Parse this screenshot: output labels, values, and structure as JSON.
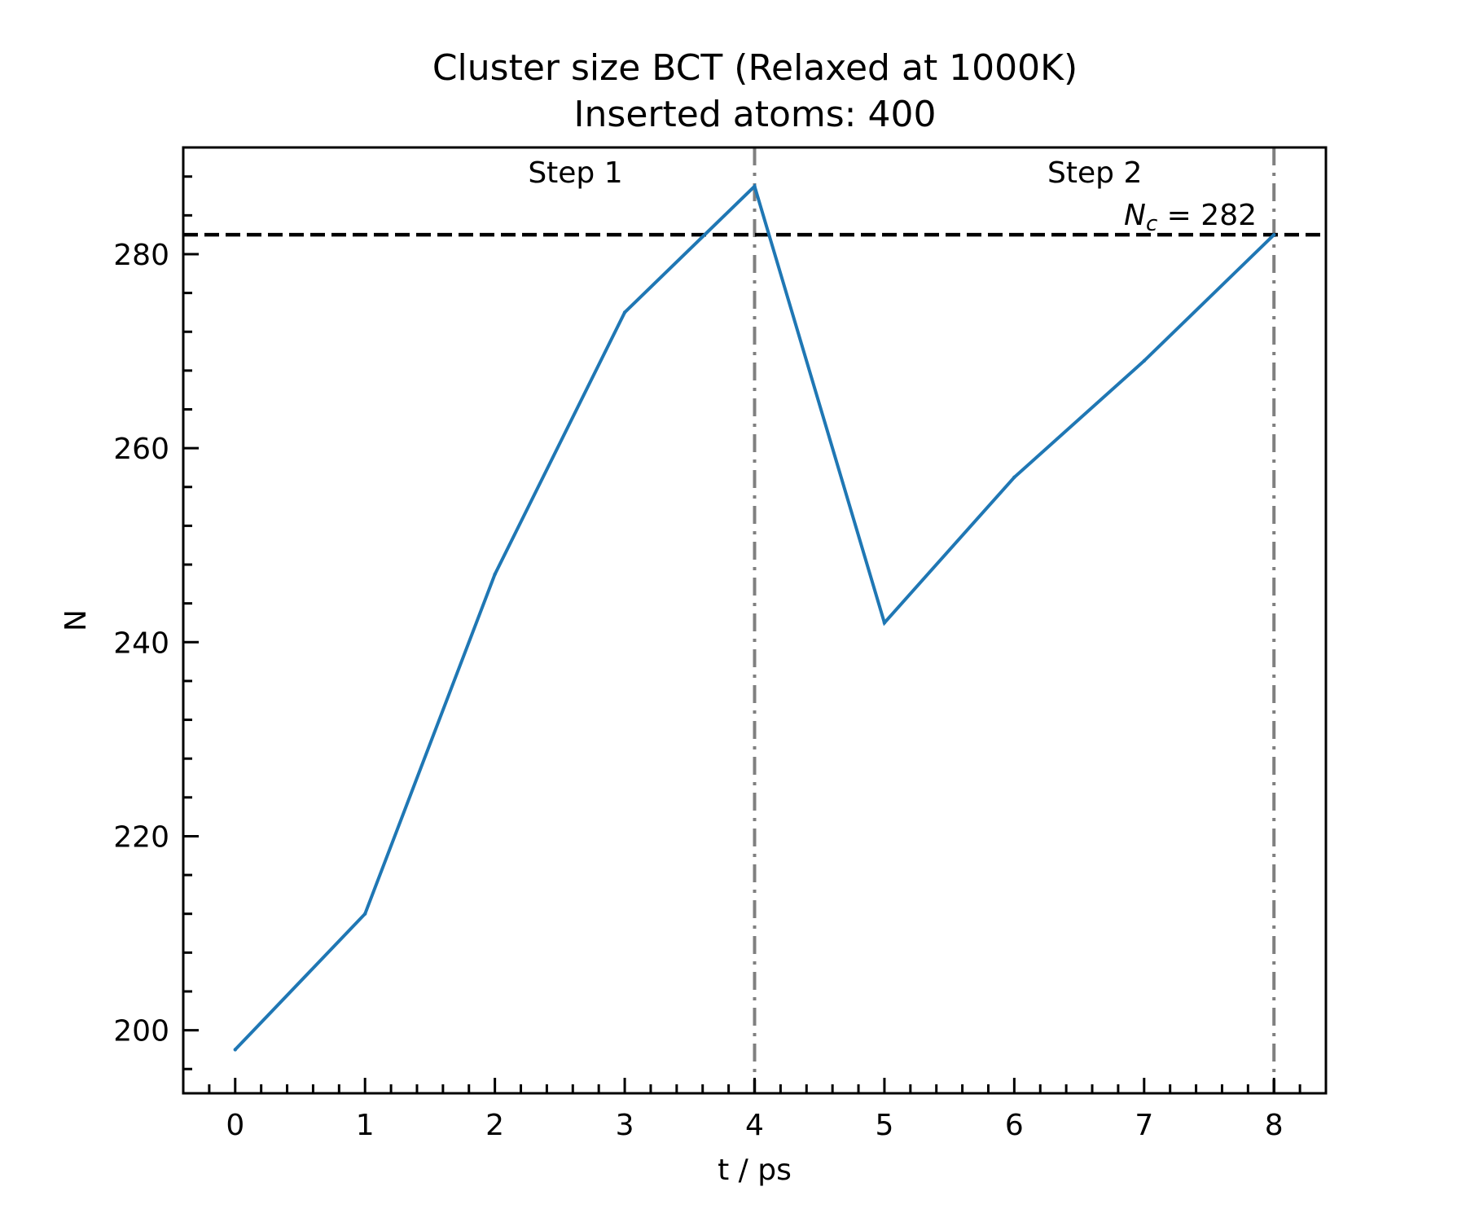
{
  "chart_data": {
    "type": "line",
    "title": "Cluster size BCT (Relaxed at 1000K)",
    "subtitle": "Inserted atoms: 400",
    "xlabel": "t / ps",
    "ylabel": "N",
    "xlim": [
      -0.4,
      8.4
    ],
    "ylim": [
      193.5,
      291
    ],
    "xticks": [
      0,
      1,
      2,
      3,
      4,
      5,
      6,
      7,
      8
    ],
    "yticks": [
      200,
      220,
      240,
      260,
      280
    ],
    "series": [
      {
        "x": [
          0,
          1,
          2,
          3,
          4,
          5,
          6,
          7,
          8
        ],
        "values": [
          198,
          212,
          247,
          274,
          287,
          242,
          257,
          269,
          282
        ],
        "color": "#1f77b4"
      }
    ],
    "threshold": {
      "value": 282,
      "label_prefix": "N",
      "label_sub": "c",
      "label_suffix": " = 282",
      "color": "#000000"
    },
    "step_lines": [
      4,
      8
    ],
    "step_line_color": "#808080",
    "annotations": [
      {
        "text": "Step 1",
        "x": 2.62
      },
      {
        "text": "Step 2",
        "x": 6.62
      }
    ],
    "grid": false
  }
}
